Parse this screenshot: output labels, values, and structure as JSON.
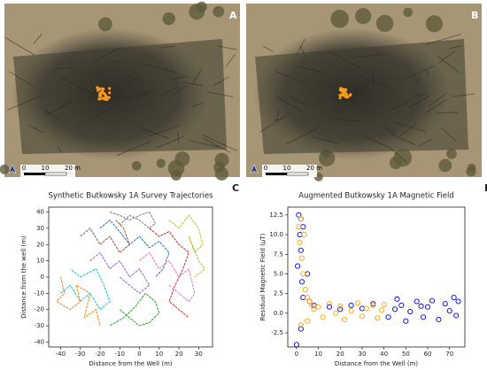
{
  "image_panels": [
    {
      "label": "A",
      "scale_labels": [
        "0",
        "10",
        "20 m"
      ]
    },
    {
      "label": "B",
      "scale_labels": [
        "0",
        "10",
        "20 m"
      ]
    }
  ],
  "chart_data": [
    {
      "type": "line",
      "panel_label": "C",
      "title": "Synthetic Butkowsky 1A Survey Trajectories",
      "x_label": "Distance from the Well (m)",
      "y_label": "Distance from the well (m)",
      "xlim": [
        -46,
        37
      ],
      "ylim": [
        -43,
        43
      ],
      "xticks": [
        -40,
        -30,
        -20,
        -10,
        0,
        10,
        20,
        30
      ],
      "yticks": [
        -40,
        -30,
        -20,
        -10,
        0,
        10,
        20,
        30,
        40
      ],
      "series": [
        {
          "color": "#1f77b4",
          "x": [
            -20,
            -15,
            -10,
            -5,
            0,
            5,
            10,
            15,
            12,
            8
          ],
          "values": [
            30,
            35,
            28,
            20,
            25,
            18,
            22,
            15,
            5,
            0
          ]
        },
        {
          "color": "#ff7f0e",
          "x": [
            -40,
            -38,
            -42,
            -35,
            -30,
            -32,
            -25,
            -28,
            -22,
            -20
          ],
          "values": [
            0,
            -10,
            -15,
            -20,
            -15,
            -5,
            -10,
            -25,
            -20,
            -30
          ]
        },
        {
          "color": "#2ca02c",
          "x": [
            -10,
            -5,
            0,
            5,
            10,
            8,
            3,
            -2,
            -8,
            -15
          ],
          "values": [
            -20,
            -25,
            -30,
            -28,
            -22,
            -15,
            -10,
            -18,
            -25,
            -30
          ]
        },
        {
          "color": "#d62728",
          "x": [
            5,
            10,
            15,
            20,
            25,
            22,
            18,
            15,
            20,
            25
          ],
          "values": [
            30,
            25,
            28,
            20,
            15,
            5,
            -5,
            -15,
            -20,
            -25
          ]
        },
        {
          "color": "#9467bd",
          "x": [
            -25,
            -20,
            -15,
            -10,
            -5,
            0,
            5,
            0,
            -5,
            -10
          ],
          "values": [
            10,
            15,
            5,
            10,
            0,
            5,
            -5,
            -10,
            -5,
            0
          ]
        },
        {
          "color": "#8c564b",
          "x": [
            -30,
            -25,
            -20,
            -15,
            -10,
            -5,
            -8,
            -12
          ],
          "values": [
            25,
            30,
            20,
            25,
            15,
            20,
            30,
            35
          ]
        },
        {
          "color": "#e377c2",
          "x": [
            0,
            5,
            10,
            15,
            20,
            25,
            28,
            25,
            20,
            15
          ],
          "values": [
            10,
            15,
            5,
            10,
            0,
            5,
            -10,
            -15,
            -10,
            -5
          ]
        },
        {
          "color": "#7f7f7f",
          "x": [
            -15,
            -10,
            -5,
            0,
            5,
            8,
            5,
            0,
            -5,
            -10
          ],
          "values": [
            40,
            38,
            35,
            38,
            40,
            33,
            30,
            35,
            38,
            32
          ]
        },
        {
          "color": "#bcbd22",
          "x": [
            15,
            20,
            25,
            30,
            32,
            28,
            25,
            30,
            33,
            28
          ],
          "values": [
            35,
            30,
            38,
            30,
            20,
            15,
            25,
            10,
            5,
            0
          ]
        },
        {
          "color": "#17becf",
          "x": [
            -40,
            -35,
            -30,
            -25,
            -20,
            -15,
            -18,
            -22,
            -30,
            -35
          ],
          "values": [
            -10,
            -5,
            -15,
            -10,
            -20,
            -15,
            -5,
            5,
            0,
            5
          ]
        }
      ]
    },
    {
      "type": "scatter",
      "panel_label": "D",
      "title": "Augmented Butkowsky 1A Magnetic Field",
      "x_label": "Distance from the Well (m)",
      "y_label": "Residual Magnetic Field (μT)",
      "xlim": [
        -4,
        77
      ],
      "ylim": [
        -4.3,
        13.5
      ],
      "xticks": [
        0,
        10,
        20,
        30,
        40,
        50,
        60,
        70
      ],
      "yticks": [
        -2.5,
        {
          "value": 0,
          "label": "0.0"
        },
        2.5,
        {
          "value": 5,
          "label": "5.0"
        },
        7.5,
        {
          "value": 10,
          "label": "10.0"
        },
        12.5
      ],
      "series": [
        {
          "color": "#0000dd",
          "x": [
            1,
            2,
            1.5,
            2,
            3,
            0.5,
            2.5,
            3,
            5,
            6,
            8,
            15,
            20,
            25,
            30,
            35,
            0,
            2,
            42,
            45,
            48,
            50,
            52,
            55,
            58,
            60,
            62,
            65,
            68,
            70,
            72,
            74,
            73,
            46,
            57
          ],
          "values": [
            12.5,
            12,
            10,
            8,
            11,
            6,
            4,
            2,
            5,
            1.5,
            1,
            0.8,
            0.5,
            1,
            0.6,
            1.2,
            -4,
            -2,
            -0.5,
            0.5,
            1,
            -1,
            0.2,
            1.5,
            -0.5,
            0.8,
            1.6,
            -0.8,
            1.2,
            0.3,
            2,
            1.5,
            -0.3,
            1.8,
            0.9
          ]
        },
        {
          "color": "#ffa500",
          "x": [
            1,
            1.5,
            2,
            2.5,
            3,
            3.5,
            4,
            5,
            6,
            7,
            8,
            10,
            12,
            15,
            18,
            20,
            22,
            25,
            28,
            30,
            32,
            35,
            37,
            39,
            40,
            2,
            5
          ],
          "values": [
            11,
            9,
            12,
            7,
            5,
            10,
            3,
            2,
            1.5,
            1,
            0.5,
            0.8,
            -0.5,
            1.2,
            0,
            0.9,
            -0.8,
            0.3,
            1.3,
            -0.4,
            0.6,
            1,
            -0.6,
            0.4,
            1.1,
            -1.5,
            -1
          ]
        }
      ]
    }
  ]
}
